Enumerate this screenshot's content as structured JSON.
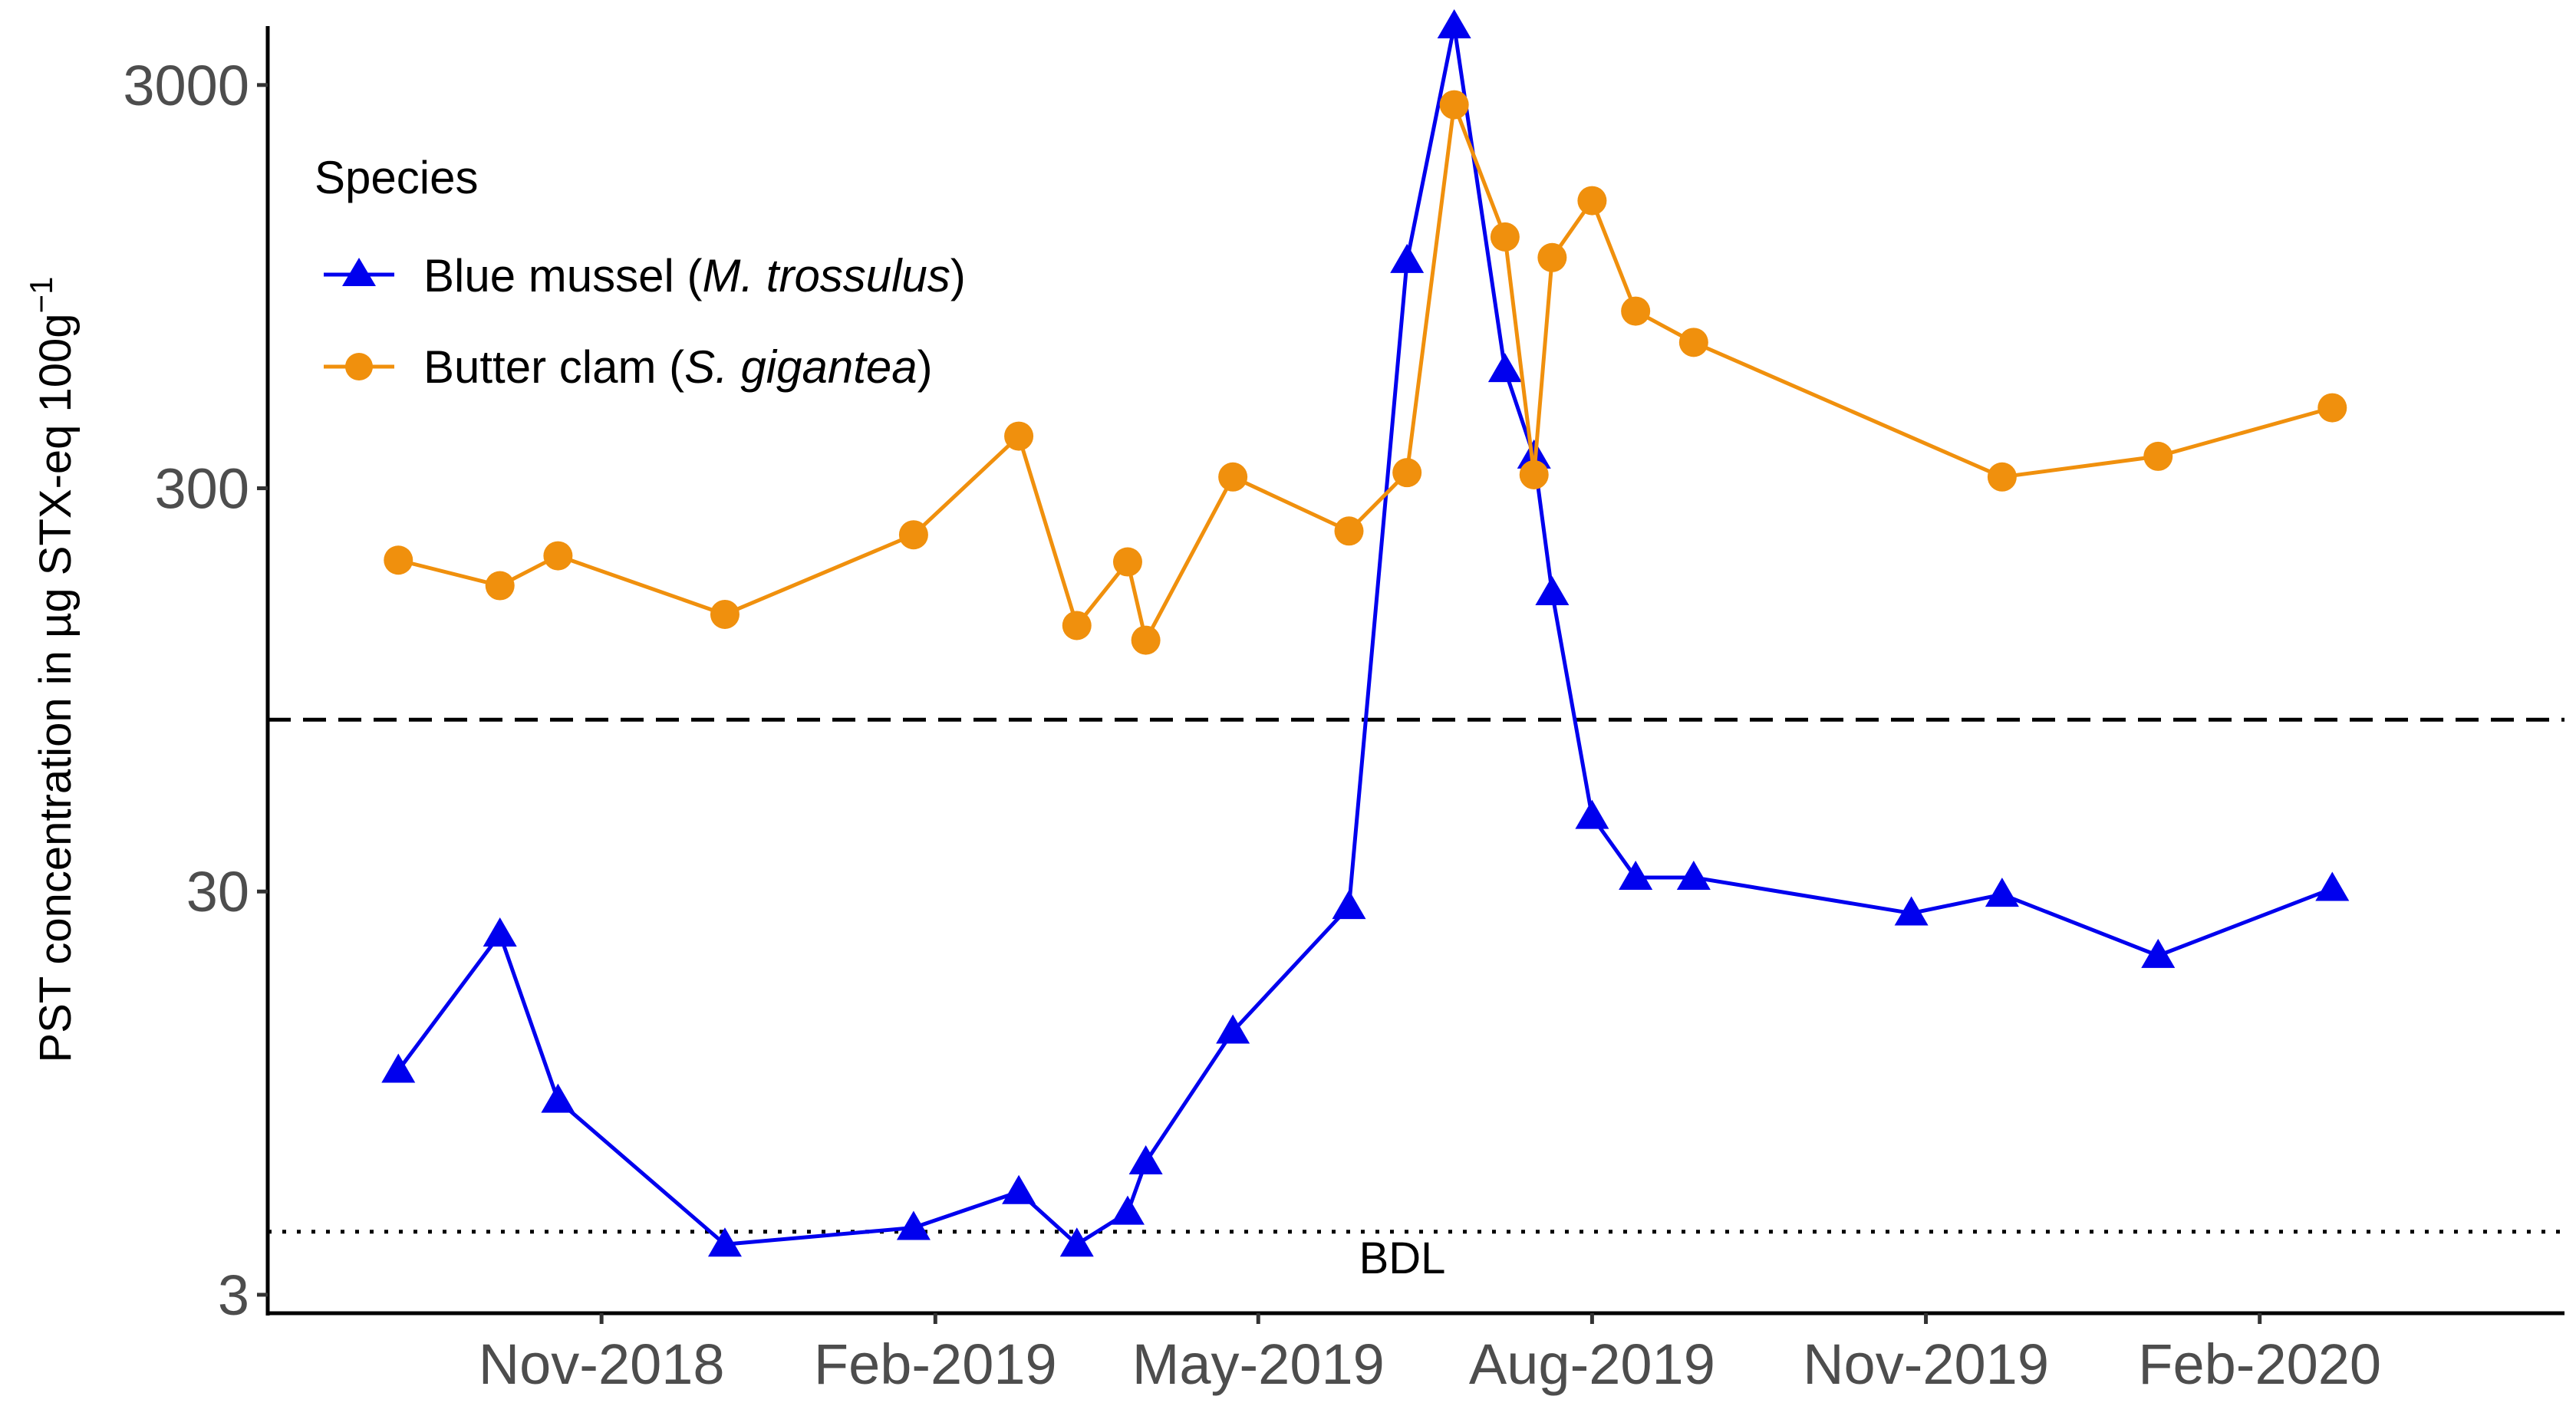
{
  "chart_data": {
    "type": "line",
    "title": "",
    "xlabel": "",
    "ylabel": "PST concentration in µg STX-eq 100g",
    "ylabel_superscript": "−1",
    "yscale": "log10",
    "ylim": [
      2.7,
      4200
    ],
    "yticks": [
      3,
      30,
      300,
      3000
    ],
    "ytick_labels": [
      "3",
      "30",
      "300",
      "3000"
    ],
    "xlim": [
      "2018-08-01",
      "2020-04-25"
    ],
    "xticks": [
      "2018-11-01",
      "2019-02-01",
      "2019-05-01",
      "2019-08-01",
      "2019-11-01",
      "2020-02-01"
    ],
    "xtick_labels": [
      "Nov-2018",
      "Feb-2019",
      "May-2019",
      "Aug-2019",
      "Nov-2019",
      "Feb-2020"
    ],
    "grid": false,
    "legend": {
      "title": "Species",
      "position": "top-left",
      "entries": [
        {
          "prefix": "Blue mussel (",
          "italic": "M. trossulus",
          "suffix": ")"
        },
        {
          "prefix": "Butter clam (",
          "italic": "S. gigantea",
          "suffix": ")"
        }
      ]
    },
    "reference_lines": [
      {
        "name": "regulatory-limit",
        "value": 80,
        "style": "dashed"
      },
      {
        "name": "bdl",
        "value": 4.3,
        "style": "dotted",
        "label": "BDL"
      }
    ],
    "series": [
      {
        "name": "Blue mussel (M. trossulus)",
        "color": "#0000ee",
        "marker": "triangle",
        "x": [
          "2018-09-06",
          "2018-10-04",
          "2018-10-20",
          "2018-12-05",
          "2019-01-26",
          "2019-02-24",
          "2019-03-12",
          "2019-03-26",
          "2019-03-31",
          "2019-04-24",
          "2019-05-26",
          "2019-06-11",
          "2019-06-24",
          "2019-07-08",
          "2019-07-16",
          "2019-07-21",
          "2019-08-01",
          "2019-08-13",
          "2019-08-29",
          "2019-10-28",
          "2019-11-22",
          "2020-01-04",
          "2020-02-21"
        ],
        "values": [
          10.8,
          23.5,
          9.1,
          4.0,
          4.4,
          5.4,
          4.0,
          4.8,
          6.4,
          13.5,
          27.5,
          1100,
          4200,
          590,
          360,
          165,
          46,
          32.5,
          32.5,
          26.5,
          29.5,
          20.8,
          30.5
        ]
      },
      {
        "name": "Butter clam (S. gigantea)",
        "color": "#f0900d",
        "marker": "circle",
        "x": [
          "2018-09-06",
          "2018-10-04",
          "2018-10-20",
          "2018-12-05",
          "2019-01-26",
          "2019-02-24",
          "2019-03-12",
          "2019-03-26",
          "2019-03-31",
          "2019-04-24",
          "2019-05-26",
          "2019-06-11",
          "2019-06-24",
          "2019-07-08",
          "2019-07-16",
          "2019-07-21",
          "2019-08-01",
          "2019-08-13",
          "2019-08-29",
          "2019-11-22",
          "2020-01-04",
          "2020-02-21"
        ],
        "values": [
          199,
          172,
          204,
          146,
          230,
          404,
          137,
          197,
          126,
          320,
          235,
          328,
          2680,
          1260,
          324,
          1120,
          1550,
          825,
          690,
          320,
          360,
          475
        ]
      }
    ]
  }
}
